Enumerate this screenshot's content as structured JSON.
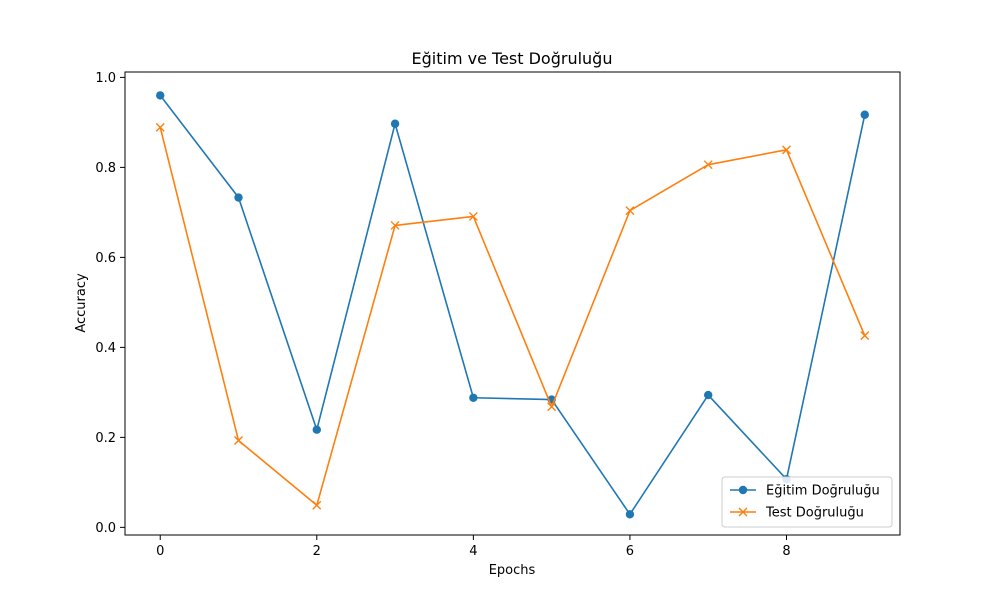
{
  "chart_data": {
    "type": "line",
    "title": "Eğitim ve Test Doğruluğu",
    "xlabel": "Epochs",
    "ylabel": "Accuracy",
    "x": [
      0,
      1,
      2,
      3,
      4,
      5,
      6,
      7,
      8,
      9
    ],
    "xticks": [
      0,
      2,
      4,
      6,
      8
    ],
    "yticks": [
      0.0,
      0.2,
      0.4,
      0.6,
      0.8,
      1.0
    ],
    "xlim": [
      -0.45,
      9.45
    ],
    "ylim": [
      -0.017,
      1.012
    ],
    "grid": false,
    "legend_position": "lower right",
    "series": [
      {
        "name": "Eğitim Doğruluğu",
        "color": "#1f77b4",
        "marker": "circle",
        "values": [
          0.96,
          0.733,
          0.217,
          0.897,
          0.288,
          0.284,
          0.029,
          0.294,
          0.107,
          0.917
        ]
      },
      {
        "name": "Test Doğruluğu",
        "color": "#ff7f0e",
        "marker": "x",
        "values": [
          0.889,
          0.193,
          0.049,
          0.671,
          0.691,
          0.268,
          0.704,
          0.806,
          0.839,
          0.426
        ]
      }
    ]
  }
}
